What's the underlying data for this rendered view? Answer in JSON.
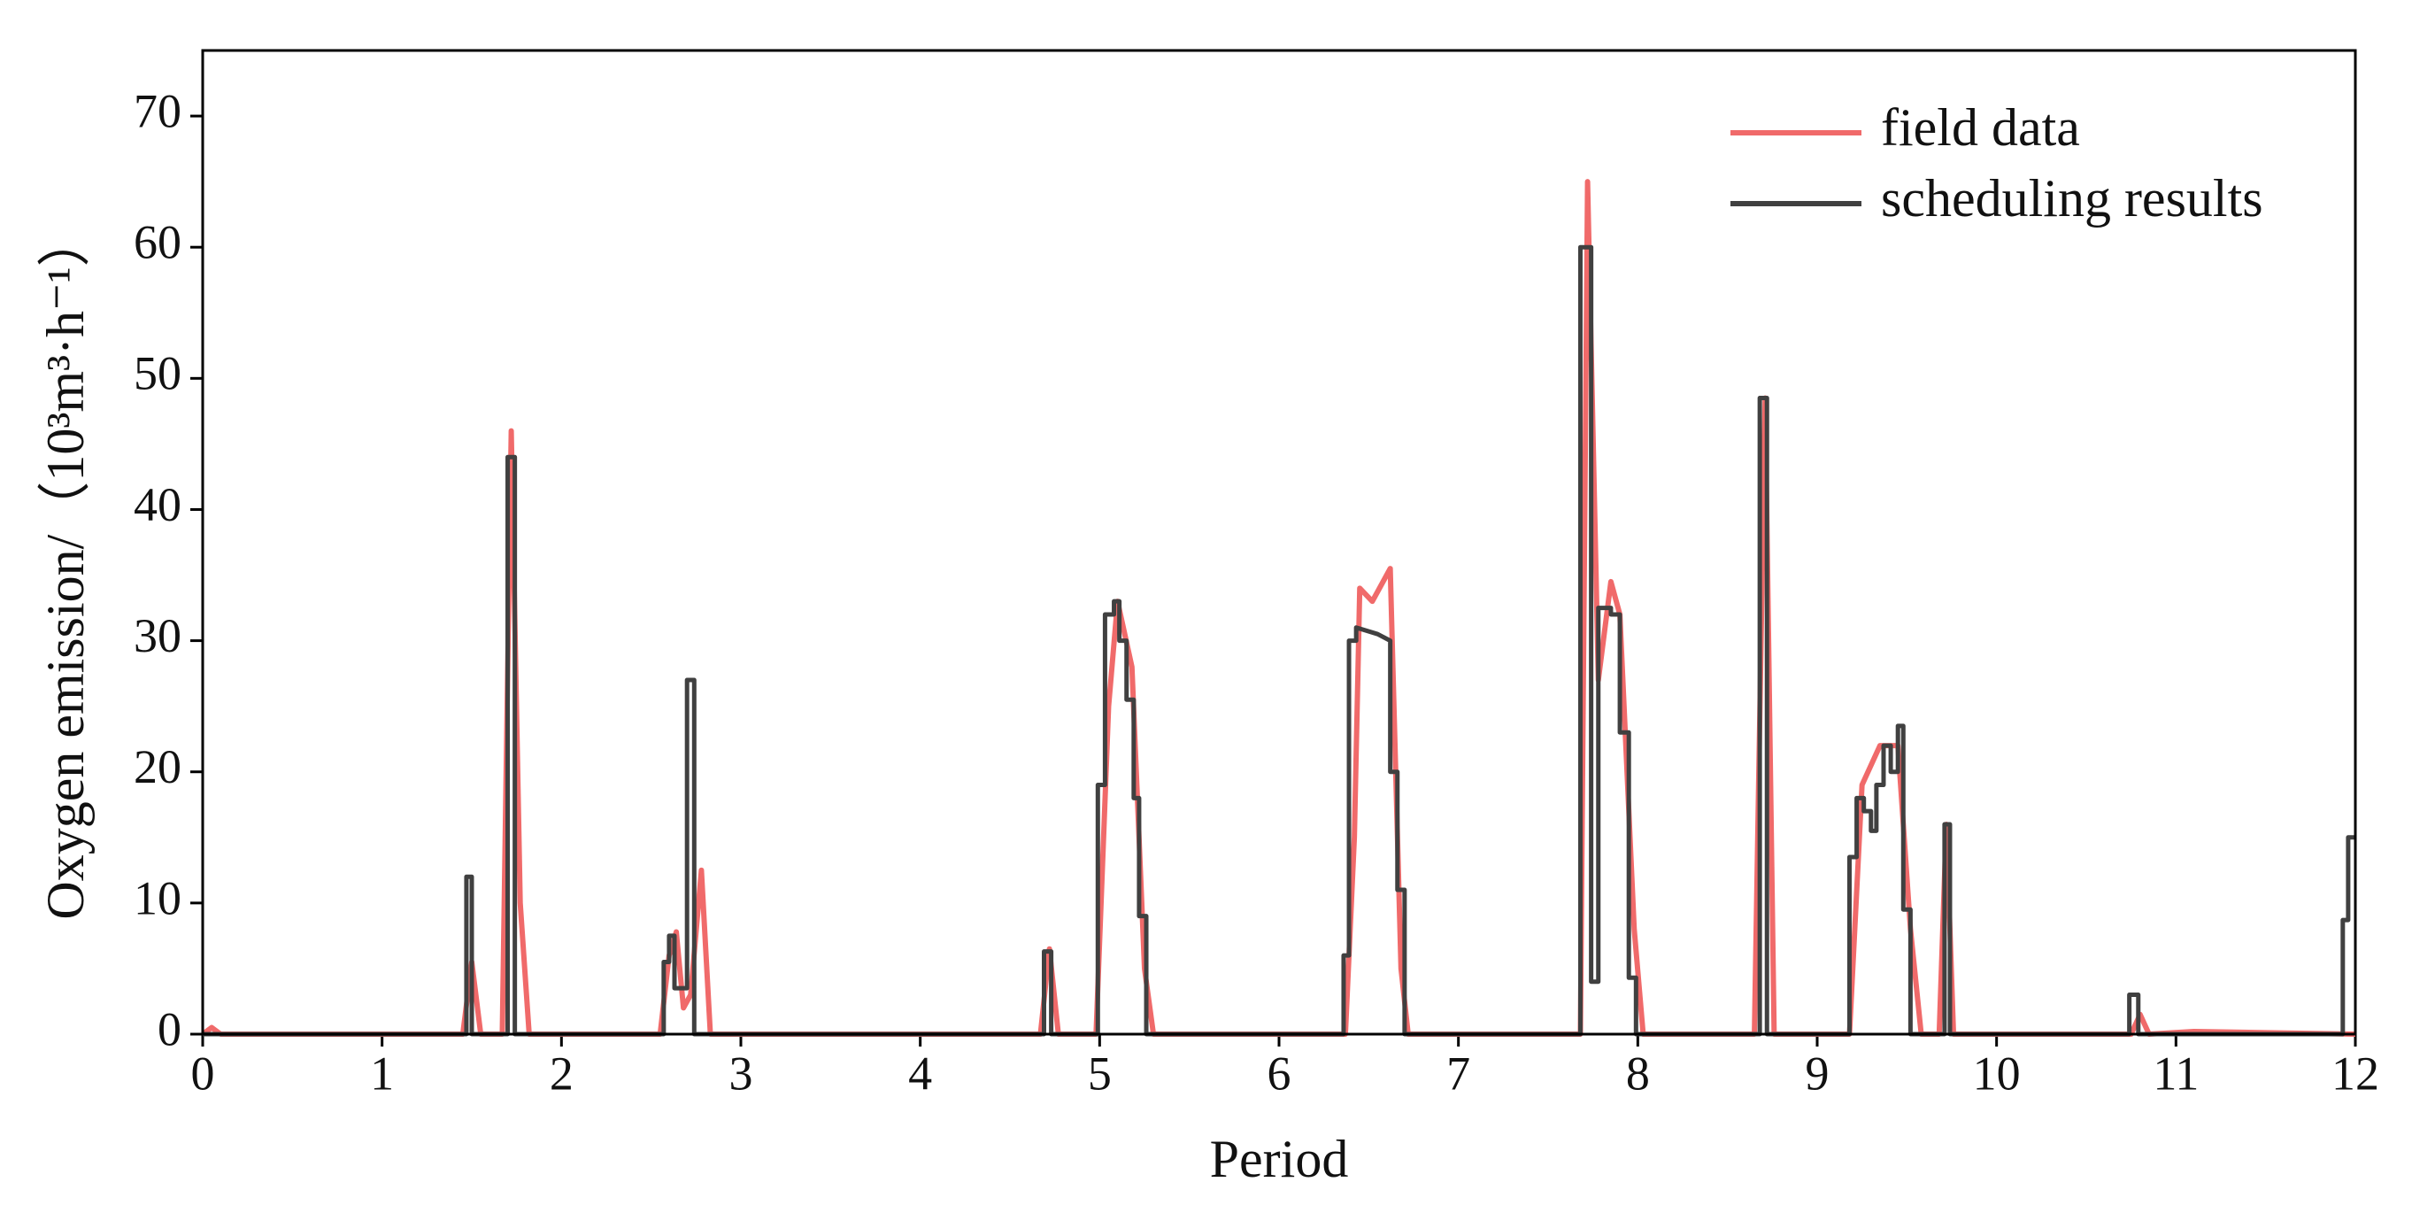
{
  "chart_data": {
    "type": "line",
    "xlabel": "Period",
    "ylabel": "Oxygen emission/（10³m³·h⁻¹）",
    "xlim": [
      0,
      12
    ],
    "xticks": [
      0,
      1,
      2,
      3,
      4,
      5,
      6,
      7,
      8,
      9,
      10,
      11,
      12
    ],
    "ylim": [
      0,
      75
    ],
    "yticks": [
      0,
      10,
      20,
      30,
      40,
      50,
      60,
      70
    ],
    "legend": "upper right",
    "series": [
      {
        "name": "field data",
        "color": "#f06a6a",
        "x": [
          0,
          0.05,
          0.1,
          1.45,
          1.5,
          1.55,
          1.67,
          1.72,
          1.77,
          1.82,
          2.55,
          2.6,
          2.64,
          2.68,
          2.72,
          2.78,
          2.83,
          4.67,
          4.72,
          4.77,
          4.98,
          5.05,
          5.1,
          5.18,
          5.25,
          5.3,
          6.37,
          6.42,
          6.45,
          6.52,
          6.62,
          6.68,
          6.72,
          7.68,
          7.72,
          7.78,
          7.85,
          7.9,
          7.98,
          8.03,
          8.65,
          8.71,
          8.76,
          9.18,
          9.25,
          9.35,
          9.45,
          9.52,
          9.58,
          9.68,
          9.72,
          9.76,
          10.75,
          10.8,
          10.85,
          11.1,
          12
        ],
        "values": [
          0,
          0.5,
          0,
          0,
          5.5,
          0,
          0,
          46,
          10,
          0,
          0,
          6,
          7.8,
          2,
          3,
          12.5,
          0,
          0,
          6.5,
          0,
          0,
          25,
          33,
          28,
          5,
          0,
          0,
          15,
          34,
          33,
          35.5,
          5,
          0,
          0,
          65,
          27,
          34.5,
          32,
          8,
          0,
          0,
          48.5,
          0,
          0,
          19,
          22,
          22,
          8,
          0,
          0,
          16,
          0,
          0,
          1.5,
          0,
          0.2,
          0
        ]
      },
      {
        "name": "scheduling results",
        "color": "#404040",
        "x": [
          0,
          1.47,
          1.47,
          1.5,
          1.5,
          1.7,
          1.7,
          1.74,
          1.74,
          2.57,
          2.57,
          2.6,
          2.6,
          2.63,
          2.63,
          2.7,
          2.7,
          2.74,
          2.74,
          4.69,
          4.69,
          4.73,
          4.73,
          4.99,
          4.99,
          5.03,
          5.03,
          5.08,
          5.08,
          5.11,
          5.11,
          5.15,
          5.15,
          5.19,
          5.19,
          5.22,
          5.22,
          5.26,
          5.26,
          6.36,
          6.36,
          6.39,
          6.39,
          6.43,
          6.43,
          6.55,
          6.62,
          6.62,
          6.66,
          6.66,
          6.7,
          6.7,
          7.68,
          7.68,
          7.74,
          7.74,
          7.78,
          7.78,
          7.85,
          7.85,
          7.9,
          7.9,
          7.95,
          7.95,
          7.99,
          7.99,
          8.68,
          8.68,
          8.72,
          8.72,
          9.18,
          9.18,
          9.22,
          9.22,
          9.26,
          9.26,
          9.3,
          9.3,
          9.33,
          9.33,
          9.37,
          9.37,
          9.41,
          9.41,
          9.45,
          9.45,
          9.48,
          9.48,
          9.52,
          9.52,
          9.71,
          9.71,
          9.74,
          9.74,
          10.74,
          10.74,
          10.79,
          10.79,
          11.93,
          11.93,
          11.96,
          11.96,
          12
        ],
        "values": [
          0,
          0,
          12,
          12,
          0,
          0,
          44,
          44,
          0,
          0,
          5.5,
          5.5,
          7.5,
          7.5,
          3.5,
          3.5,
          27,
          27,
          0,
          0,
          6.3,
          6.3,
          0,
          0,
          19,
          19,
          32,
          32,
          33,
          33,
          30,
          30,
          25.5,
          25.5,
          18,
          18,
          9,
          9,
          0,
          0,
          6,
          6,
          30,
          30,
          31,
          30.5,
          30,
          20,
          20,
          11,
          11,
          0,
          0,
          60,
          60,
          4,
          4,
          32.5,
          32.5,
          32,
          32,
          23,
          23,
          4.3,
          4.3,
          0,
          0,
          48.5,
          48.5,
          0,
          0,
          13.5,
          13.5,
          18,
          18,
          17,
          17,
          15.5,
          15.5,
          19,
          19,
          22,
          22,
          20,
          20,
          23.5,
          23.5,
          9.5,
          9.5,
          0,
          0,
          16,
          16,
          0,
          0,
          3,
          3,
          0,
          0,
          8.7,
          8.7,
          15,
          15
        ]
      }
    ]
  }
}
